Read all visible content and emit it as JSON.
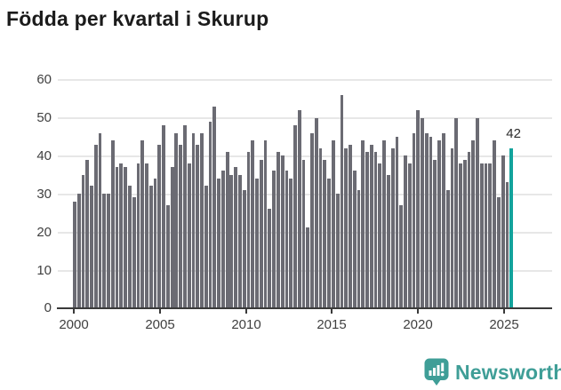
{
  "title": "Födda per kvartal i Skurup",
  "footer": {
    "brand": "Newsworthy"
  },
  "colors": {
    "bar": "#6b6b73",
    "accent": "#12a39c",
    "grid": "#e7e7e7",
    "axis": "#3a3a3a",
    "brand_teal": "#3f9e97"
  },
  "chart_data": {
    "type": "bar",
    "title": "Födda per kvartal i Skurup",
    "frequency": "quarterly",
    "x_start": "2000 Q1",
    "x_end": "2025 Q4",
    "x_tick_labels": [
      "2000",
      "2005",
      "2010",
      "2015",
      "2020",
      "2025"
    ],
    "y_tick_labels": [
      "0",
      "10",
      "20",
      "30",
      "40",
      "50",
      "60"
    ],
    "ylim": [
      0,
      60
    ],
    "grid": true,
    "legend": false,
    "values": [
      28,
      30,
      35,
      39,
      32,
      43,
      46,
      30,
      30,
      44,
      37,
      38,
      37,
      32,
      29,
      38,
      44,
      38,
      32,
      34,
      43,
      48,
      27,
      37,
      46,
      43,
      48,
      38,
      46,
      43,
      46,
      32,
      49,
      53,
      34,
      36,
      41,
      35,
      37,
      35,
      31,
      41,
      44,
      34,
      39,
      44,
      26,
      36,
      41,
      40,
      36,
      34,
      48,
      52,
      39,
      21,
      46,
      50,
      42,
      39,
      34,
      44,
      30,
      56,
      42,
      43,
      36,
      31,
      44,
      41,
      43,
      41,
      38,
      44,
      35,
      42,
      45,
      27,
      40,
      38,
      46,
      52,
      50,
      46,
      45,
      39,
      44,
      46,
      31,
      42,
      50,
      38,
      39,
      41,
      44,
      50,
      38,
      38,
      38,
      44,
      29,
      40,
      33,
      42
    ],
    "highlight_last": true,
    "last_value_label": "42"
  }
}
